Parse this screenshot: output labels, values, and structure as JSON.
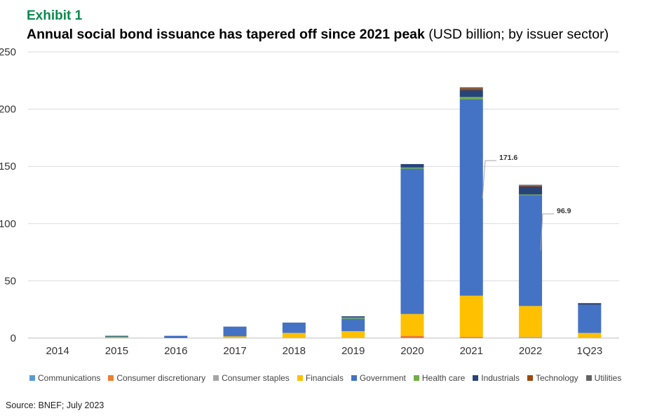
{
  "exhibit_label": "Exhibit 1",
  "title_main": "Annual social bond issuance has tapered off since 2021 peak",
  "title_sub": " (USD billion; by issuer sector)",
  "source": "Source: BNEF; July 2023",
  "chart_data": {
    "type": "bar",
    "stacked": true,
    "title": "Annual social bond issuance has tapered off since 2021 peak",
    "ylabel": "USD billion",
    "ylim": [
      0,
      250
    ],
    "yticks": [
      0,
      50,
      100,
      150,
      200,
      250
    ],
    "grid": true,
    "legend_position": "bottom",
    "categories": [
      "2014",
      "2015",
      "2016",
      "2017",
      "2018",
      "2019",
      "2020",
      "2021",
      "2022",
      "1Q23"
    ],
    "series": [
      {
        "name": "Communications",
        "color": "#5b9bd5",
        "values": [
          0,
          0,
          0,
          0,
          0,
          0,
          0,
          0,
          0,
          0
        ]
      },
      {
        "name": "Consumer discretionary",
        "color": "#ed7d31",
        "values": [
          0,
          0,
          0,
          0,
          0,
          0,
          2,
          1,
          0,
          0
        ]
      },
      {
        "name": "Consumer staples",
        "color": "#a5a5a5",
        "values": [
          0,
          0,
          0,
          0,
          0,
          0,
          0,
          0,
          1,
          0
        ]
      },
      {
        "name": "Financials",
        "color": "#ffc000",
        "values": [
          0,
          0.5,
          0,
          1.5,
          4.5,
          6,
          19,
          36,
          27,
          4.5
        ]
      },
      {
        "name": "Government",
        "color": "#4472c4",
        "values": [
          0,
          0.5,
          2,
          8.5,
          9,
          11,
          127,
          171.6,
          96.9,
          24.5
        ]
      },
      {
        "name": "Health care",
        "color": "#70ad47",
        "values": [
          0,
          0.5,
          0,
          0,
          0,
          1,
          1,
          2,
          0.5,
          0
        ]
      },
      {
        "name": "Industrials",
        "color": "#264478",
        "values": [
          0,
          0.5,
          0,
          0,
          0,
          1,
          3,
          6,
          7,
          1.5
        ]
      },
      {
        "name": "Technology",
        "color": "#9e480e",
        "values": [
          0,
          0,
          0,
          0,
          0,
          0,
          0,
          1.5,
          1,
          0
        ]
      },
      {
        "name": "Utilities",
        "color": "#636363",
        "values": [
          0,
          0,
          0,
          0,
          0,
          0,
          0,
          1,
          0.5,
          0
        ]
      }
    ],
    "annotations": [
      {
        "text": "171.6",
        "category": "2021",
        "series": "Government"
      },
      {
        "text": "96.9",
        "category": "2022",
        "series": "Government"
      }
    ]
  }
}
